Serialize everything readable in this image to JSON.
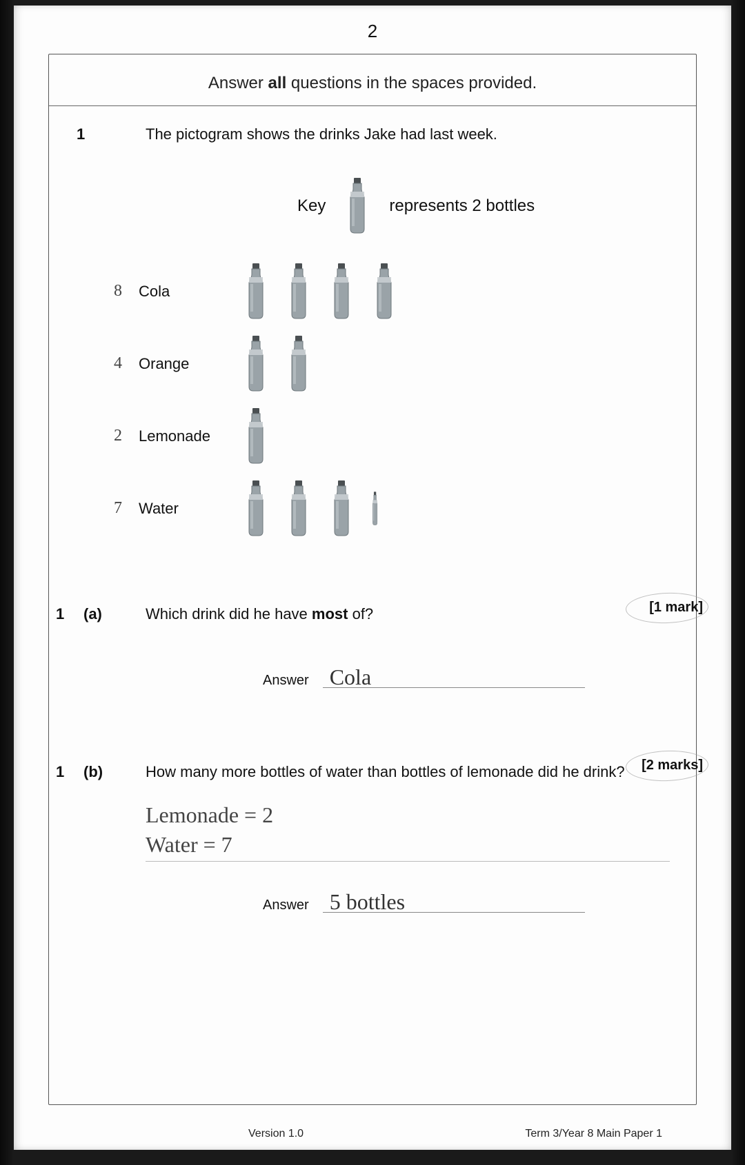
{
  "page_number": "2",
  "instruction_prefix": "Answer ",
  "instruction_bold": "all",
  "instruction_suffix": " questions in the spaces provided.",
  "q1": {
    "number": "1",
    "text": "The pictogram shows the drinks Jake had last week.",
    "key_label": "Key",
    "key_desc": "represents 2 bottles",
    "rows": [
      {
        "hand": "8",
        "label": "Cola",
        "bottles": 4,
        "half": false
      },
      {
        "hand": "4",
        "label": "Orange",
        "bottles": 2,
        "half": false
      },
      {
        "hand": "2",
        "label": "Lemonade",
        "bottles": 1,
        "half": false
      },
      {
        "hand": "7",
        "label": "Water",
        "bottles": 3.5,
        "half": true
      }
    ]
  },
  "q1a": {
    "number": "1",
    "part": "(a)",
    "text_pre": "Which drink did he have ",
    "text_bold": "most",
    "text_post": " of?",
    "marks": "[1 mark]",
    "answer_label": "Answer",
    "answer_value": "Cola"
  },
  "q1b": {
    "number": "1",
    "part": "(b)",
    "text": "How many more bottles of water than bottles of lemonade did he drink?",
    "marks": "[2 marks]",
    "working_line1": "Lemonade = 2",
    "working_line2": "Water = 7",
    "answer_label": "Answer",
    "answer_value": "5 bottles"
  },
  "footer_left": "Version 1.0",
  "footer_right": "Term 3/Year 8 Main Paper 1",
  "colors": {
    "bottle_body": "#9aa3a8",
    "bottle_dark": "#6f787d",
    "bottle_cap": "#4a4f52",
    "bottle_label": "#c8cdd0",
    "page_bg": "#fdfdfd",
    "text": "#111111",
    "hand": "#444444"
  }
}
